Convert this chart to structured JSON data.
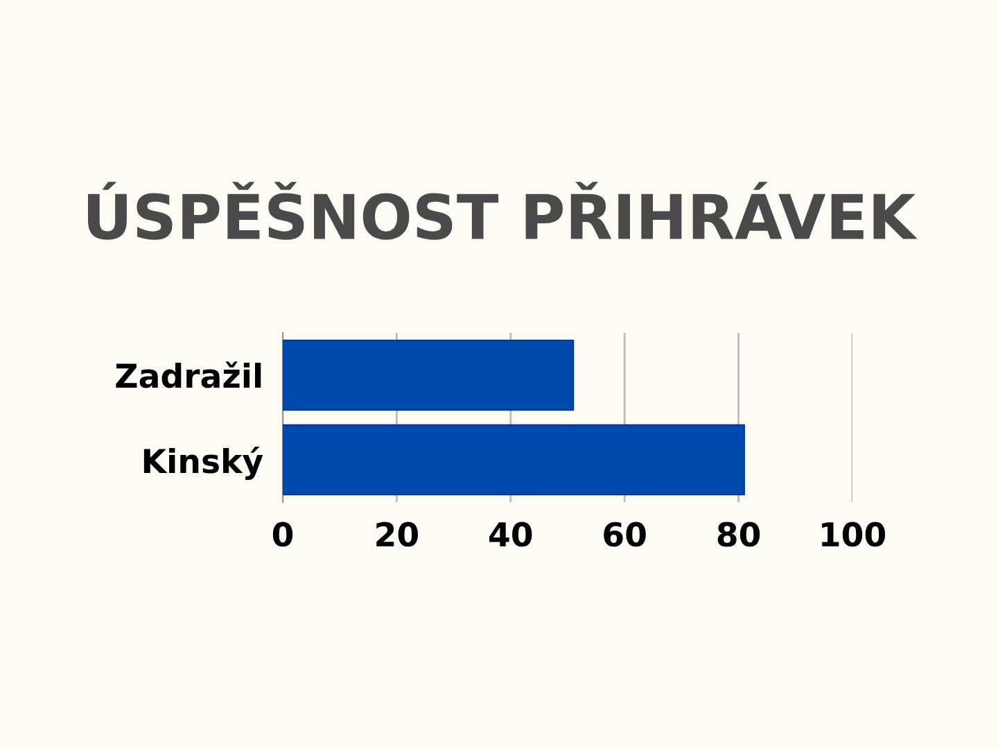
{
  "chart_data": {
    "type": "bar",
    "orientation": "horizontal",
    "title": "ÚSPĚŠNOST PŘIHRÁVEK",
    "categories": [
      "Zadražil",
      "Kinský"
    ],
    "values": [
      51,
      81
    ],
    "color": "#004aad",
    "xlim": [
      0,
      100
    ],
    "xticks": [
      0,
      20,
      40,
      60,
      80,
      100
    ],
    "grid": "x"
  }
}
